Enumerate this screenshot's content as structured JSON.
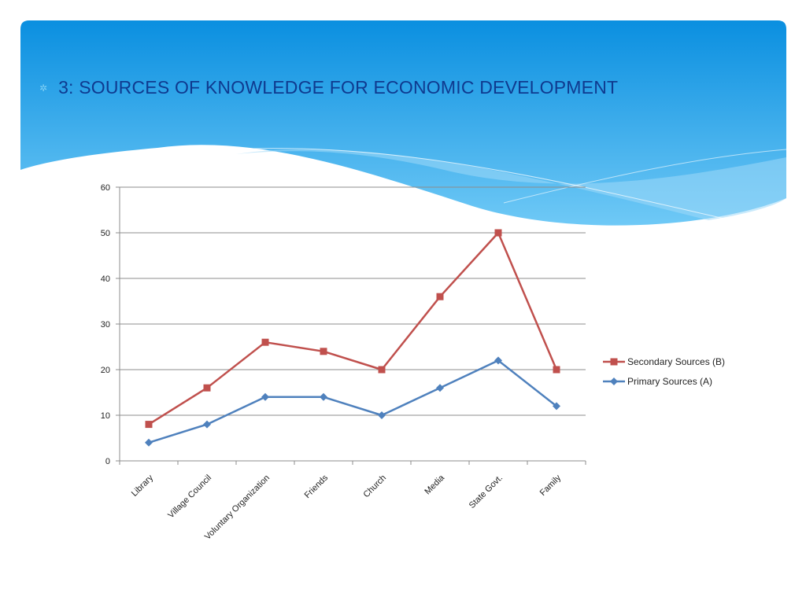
{
  "slide": {
    "title": "3: SOURCES OF KNOWLEDGE FOR ECONOMIC DEVELOPMENT",
    "bullet_icon": "star-bullet-icon"
  },
  "colors": {
    "banner_top": "#0a8fe0",
    "banner_bottom": "#6fc9f6",
    "title": "#0f3a8f",
    "secondary": "#c0504d",
    "primary": "#4f81bd",
    "grid": "#8c8c8c"
  },
  "chart_data": {
    "type": "line",
    "title": "",
    "xlabel": "",
    "ylabel": "",
    "categories": [
      "Library",
      "Village Council",
      "Voluntary Organization",
      "Friends",
      "Church",
      "Media",
      "State Govt.",
      "Family"
    ],
    "ylim": [
      0,
      60
    ],
    "yticks": [
      0,
      10,
      20,
      30,
      40,
      50,
      60
    ],
    "grid": true,
    "legend_position": "right",
    "series": [
      {
        "name": "Secondary Sources (B)",
        "marker": "square",
        "color": "#c0504d",
        "values": [
          8,
          16,
          26,
          24,
          20,
          36,
          50,
          20
        ]
      },
      {
        "name": "Primary Sources (A)",
        "marker": "diamond",
        "color": "#4f81bd",
        "values": [
          4,
          8,
          14,
          14,
          10,
          16,
          22,
          12
        ]
      }
    ]
  }
}
